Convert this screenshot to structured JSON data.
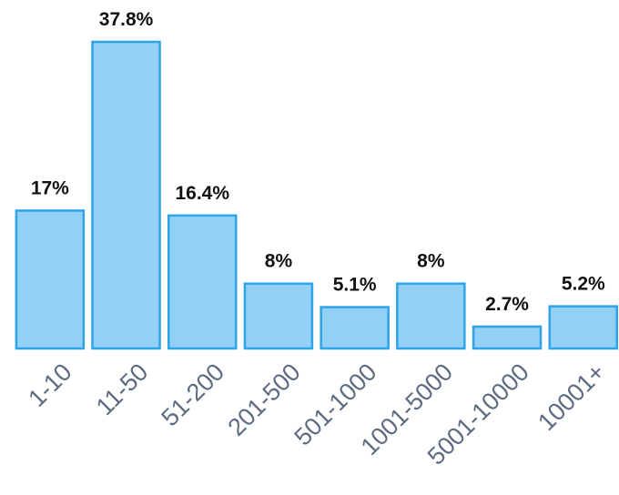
{
  "chart_data": {
    "type": "bar",
    "categories": [
      "1-10",
      "11-50",
      "51-200",
      "201-500",
      "501-1000",
      "1001-5000",
      "5001-10000",
      "10001+"
    ],
    "values": [
      17,
      37.8,
      16.4,
      8,
      5.1,
      8,
      2.7,
      5.2
    ],
    "value_labels": [
      "17%",
      "37.8%",
      "16.4%",
      "8%",
      "5.1%",
      "8%",
      "2.7%",
      "5.2%"
    ],
    "color": "#92d0f5",
    "edge_color": "#2ea3e8"
  }
}
